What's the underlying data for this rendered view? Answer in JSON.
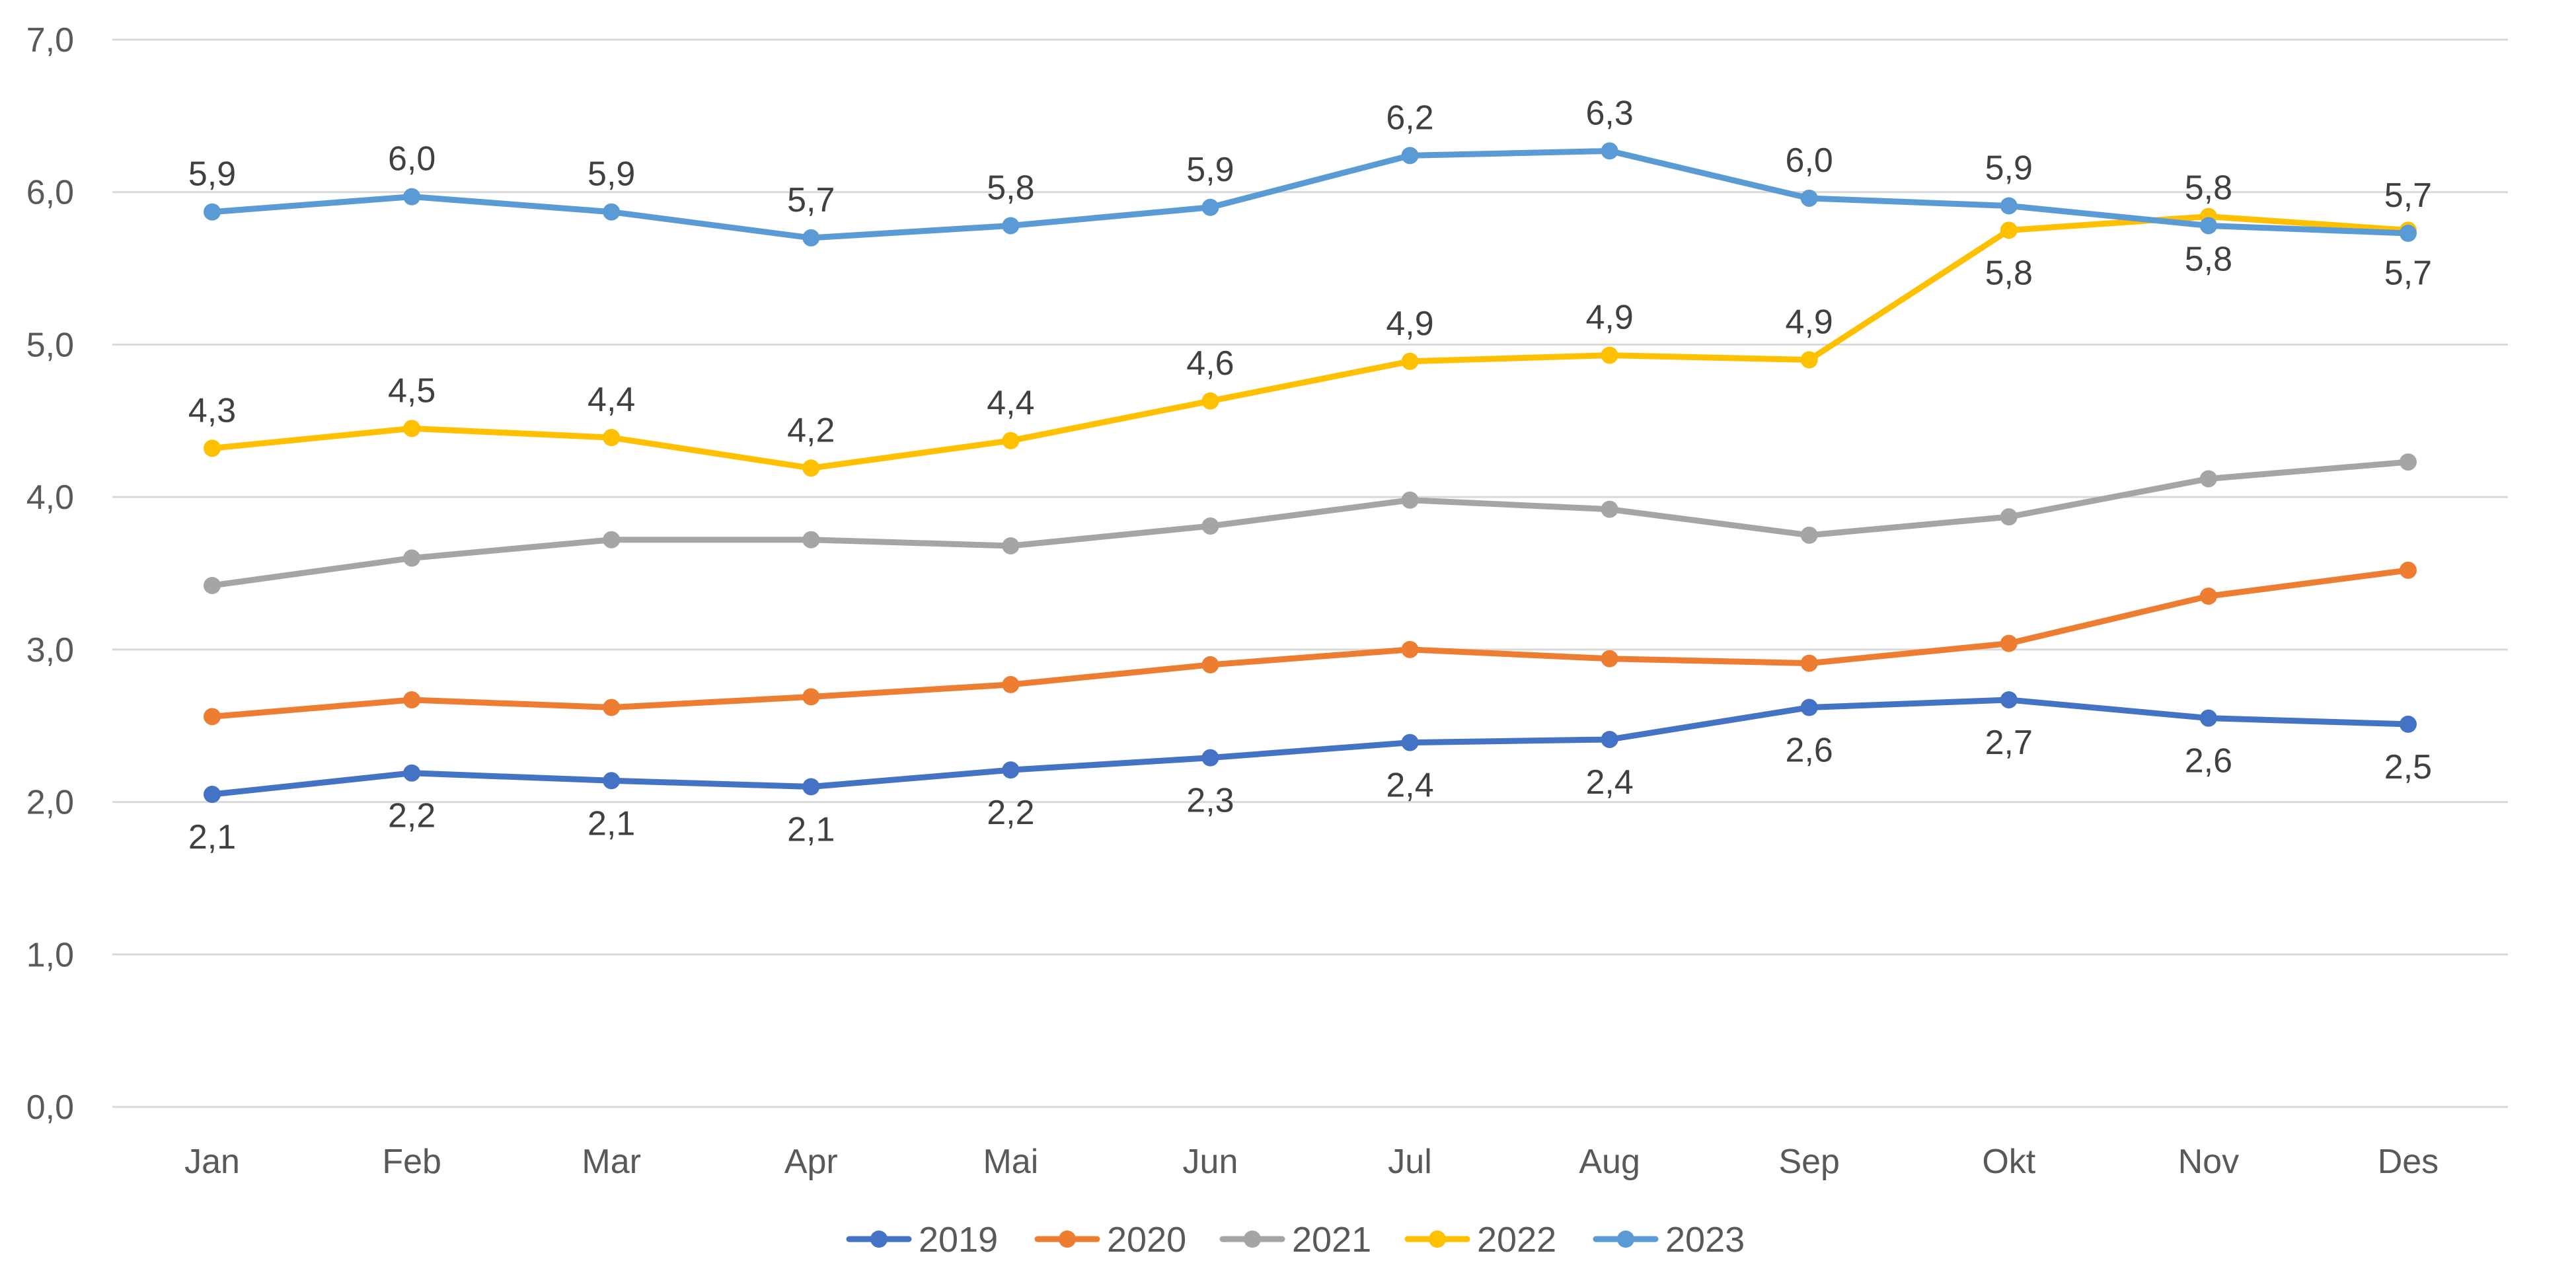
{
  "chart_data": {
    "type": "line",
    "title": "",
    "xlabel": "",
    "ylabel": "",
    "ylim": [
      0,
      7
    ],
    "y_ticks": [
      "0,0",
      "1,0",
      "2,0",
      "3,0",
      "4,0",
      "5,0",
      "6,0",
      "7,0"
    ],
    "grid": true,
    "legend_position": "bottom",
    "categories": [
      "Jan",
      "Feb",
      "Mar",
      "Apr",
      "Mai",
      "Jun",
      "Jul",
      "Aug",
      "Sep",
      "Okt",
      "Nov",
      "Des"
    ],
    "series": [
      {
        "name": "2019",
        "color": "#4472c4",
        "values": [
          2.05,
          2.19,
          2.14,
          2.1,
          2.21,
          2.29,
          2.39,
          2.41,
          2.62,
          2.67,
          2.55,
          2.51
        ],
        "labels": [
          "2,1",
          "2,2",
          "2,1",
          "2,1",
          "2,2",
          "2,3",
          "2,4",
          "2,4",
          "2,6",
          "2,7",
          "2,6",
          "2,5"
        ],
        "label_position": "below"
      },
      {
        "name": "2020",
        "color": "#ed7d31",
        "values": [
          2.56,
          2.67,
          2.62,
          2.69,
          2.77,
          2.9,
          3.0,
          2.94,
          2.91,
          3.04,
          3.35,
          3.52
        ],
        "labels": [],
        "label_position": "none"
      },
      {
        "name": "2021",
        "color": "#a5a5a5",
        "values": [
          3.42,
          3.6,
          3.72,
          3.72,
          3.68,
          3.81,
          3.98,
          3.92,
          3.75,
          3.87,
          4.12,
          4.23
        ],
        "labels": [],
        "label_position": "none"
      },
      {
        "name": "2022",
        "color": "#ffc000",
        "values": [
          4.32,
          4.45,
          4.39,
          4.19,
          4.37,
          4.63,
          4.89,
          4.93,
          4.9,
          5.75,
          5.84,
          5.75
        ],
        "labels": [
          "4,3",
          "4,5",
          "4,4",
          "4,2",
          "4,4",
          "4,6",
          "4,9",
          "4,9",
          "4,9",
          "5,8",
          "5,8",
          "5,7"
        ],
        "label_position": "above_until_sep_below_after"
      },
      {
        "name": "2023",
        "color": "#5b9bd5",
        "values": [
          5.87,
          5.97,
          5.87,
          5.7,
          5.78,
          5.9,
          6.24,
          6.27,
          5.96,
          5.91,
          5.78,
          5.73
        ],
        "labels": [
          "5,9",
          "6,0",
          "5,9",
          "5,7",
          "5,8",
          "5,9",
          "6,2",
          "6,3",
          "6,0",
          "5,9",
          "5,8",
          "5,7"
        ],
        "label_position": "above"
      }
    ]
  }
}
